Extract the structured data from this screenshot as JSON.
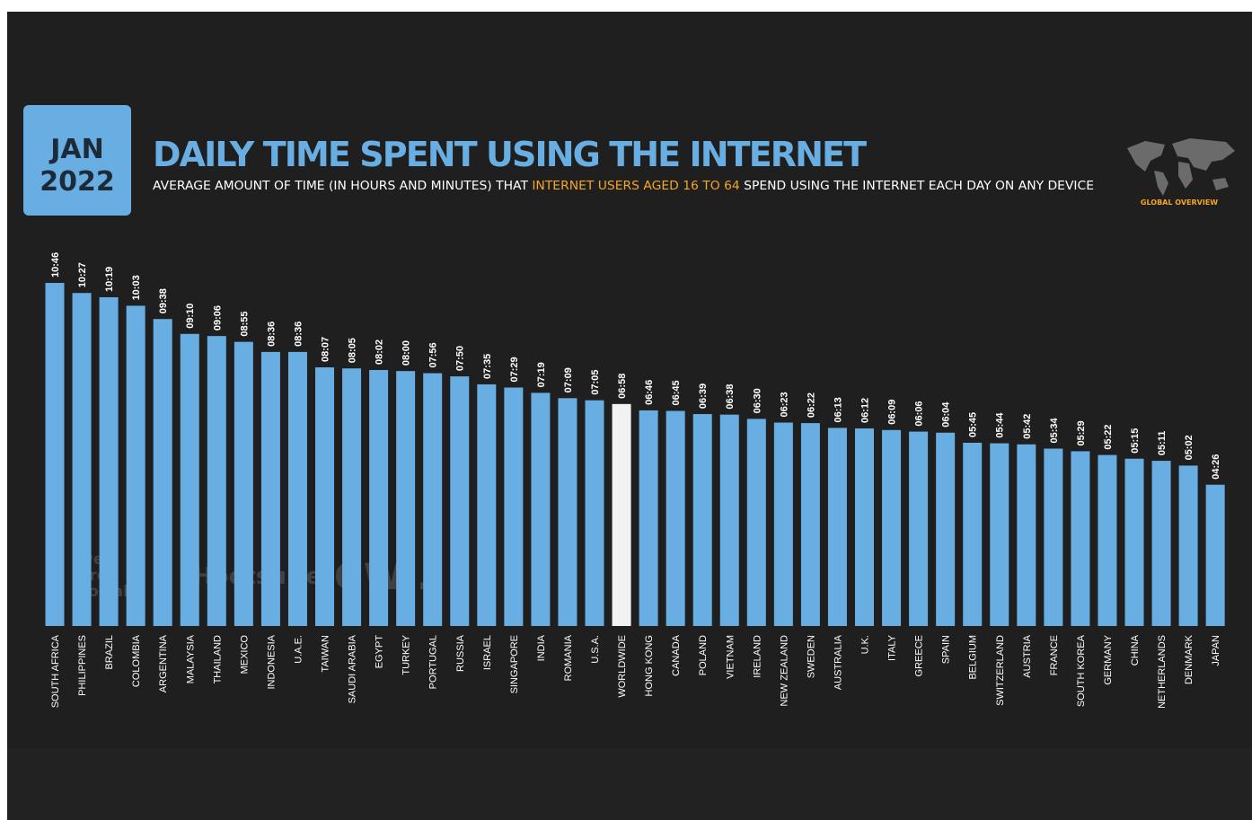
{
  "header": {
    "month": "JAN",
    "year": "2022",
    "badge": "GLOBAL OVERVIEW"
  },
  "watermark": {
    "brand1": [
      "we",
      "are",
      "social"
    ],
    "brand2": "Hootsuite",
    "brand3": "GWI."
  },
  "chart_data": {
    "type": "bar",
    "title": "DAILY TIME SPENT USING THE INTERNET",
    "subtitle": [
      "AVERAGE AMOUNT OF TIME (IN HOURS AND MINUTES) THAT ",
      "INTERNET USERS AGED 16 TO 64",
      " SPEND USING THE INTERNET EACH DAY ON ANY DEVICE"
    ],
    "categories": [
      "SOUTH AFRICA",
      "PHILIPPINES",
      "BRAZIL",
      "COLOMBIA",
      "ARGENTINA",
      "MALAYSIA",
      "THAILAND",
      "MEXICO",
      "INDONESIA",
      "U.A.E.",
      "TAIWAN",
      "SAUDI ARABIA",
      "EGYPT",
      "TURKEY",
      "PORTUGAL",
      "RUSSIA",
      "ISRAEL",
      "SINGAPORE",
      "INDIA",
      "ROMANIA",
      "U.S.A.",
      "WORLDWIDE",
      "HONG KONG",
      "CANADA",
      "POLAND",
      "VIETNAM",
      "IRELAND",
      "NEW ZEALAND",
      "SWEDEN",
      "AUSTRALIA",
      "U.K.",
      "ITALY",
      "GREECE",
      "SPAIN",
      "BELGIUM",
      "SWITZERLAND",
      "AUSTRIA",
      "FRANCE",
      "SOUTH KOREA",
      "GERMANY",
      "CHINA",
      "NETHERLANDS",
      "DENMARK",
      "JAPAN"
    ],
    "values": [
      646,
      627,
      619,
      603,
      578,
      550,
      546,
      535,
      516,
      516,
      487,
      485,
      482,
      480,
      476,
      470,
      455,
      449,
      439,
      429,
      425,
      418,
      406,
      405,
      399,
      398,
      390,
      383,
      382,
      373,
      372,
      369,
      366,
      364,
      345,
      344,
      342,
      334,
      329,
      322,
      315,
      311,
      302,
      266
    ],
    "value_labels": [
      "10:46",
      "10:27",
      "10:19",
      "10:03",
      "09:38",
      "09:10",
      "09:06",
      "08:55",
      "08:36",
      "08:36",
      "08:07",
      "08:05",
      "08:02",
      "08:00",
      "07:56",
      "07:50",
      "07:35",
      "07:29",
      "07:19",
      "07:09",
      "07:05",
      "06:58",
      "06:46",
      "06:45",
      "06:39",
      "06:38",
      "06:30",
      "06:23",
      "06:22",
      "06:13",
      "06:12",
      "06:09",
      "06:06",
      "06:04",
      "05:45",
      "05:44",
      "05:42",
      "05:34",
      "05:29",
      "05:22",
      "05:15",
      "05:11",
      "05:02",
      "04:26"
    ],
    "colors": [
      "#69aee2",
      "#69aee2",
      "#69aee2",
      "#69aee2",
      "#69aee2",
      "#69aee2",
      "#69aee2",
      "#69aee2",
      "#69aee2",
      "#69aee2",
      "#69aee2",
      "#69aee2",
      "#69aee2",
      "#69aee2",
      "#69aee2",
      "#69aee2",
      "#69aee2",
      "#69aee2",
      "#69aee2",
      "#69aee2",
      "#69aee2",
      "#f2f2f2",
      "#69aee2",
      "#69aee2",
      "#69aee2",
      "#69aee2",
      "#69aee2",
      "#69aee2",
      "#69aee2",
      "#69aee2",
      "#69aee2",
      "#69aee2",
      "#69aee2",
      "#69aee2",
      "#69aee2",
      "#69aee2",
      "#69aee2",
      "#69aee2",
      "#69aee2",
      "#69aee2",
      "#69aee2",
      "#69aee2",
      "#69aee2",
      "#69aee2"
    ]
  }
}
